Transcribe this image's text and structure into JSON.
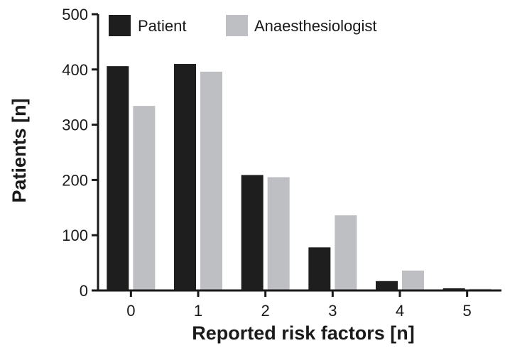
{
  "chart_data": {
    "type": "bar",
    "categories": [
      "0",
      "1",
      "2",
      "3",
      "4",
      "5"
    ],
    "series": [
      {
        "name": "Patient",
        "values": [
          406,
          410,
          209,
          78,
          17,
          4
        ],
        "color": "#1e1e1e"
      },
      {
        "name": "Anaesthesiologist",
        "values": [
          334,
          396,
          205,
          136,
          36,
          3
        ],
        "color": "#bdbfc2"
      }
    ],
    "xlabel": "Reported risk factors [n]",
    "ylabel": "Patients [n]",
    "ylim": [
      0,
      500
    ],
    "yticks": [
      0,
      100,
      200,
      300,
      400,
      500
    ],
    "legend_position": "top-left",
    "grid": false
  }
}
